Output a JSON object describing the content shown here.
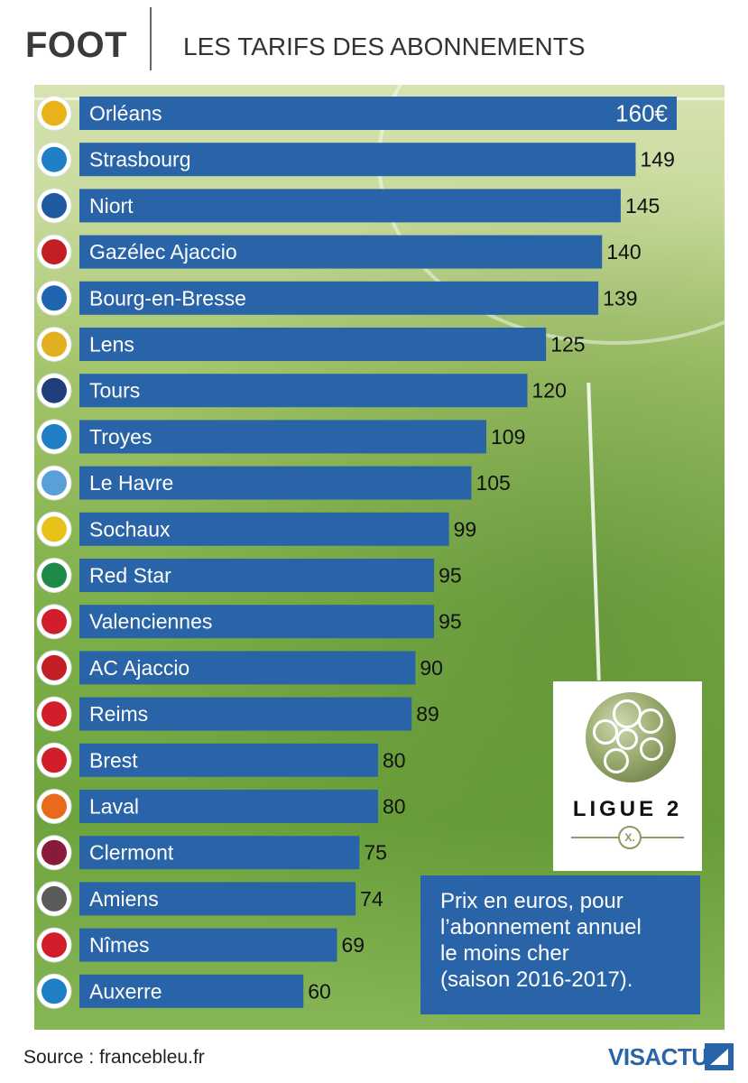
{
  "header": {
    "section": "FOOT",
    "title": "LES TARIFS DES ABONNEMENTS"
  },
  "chart_data": {
    "type": "bar",
    "orientation": "horizontal",
    "title": "LES TARIFS DES ABONNEMENTS",
    "unit": "€",
    "first_value_label": "160€",
    "categories": [
      "Orléans",
      "Strasbourg",
      "Niort",
      "Gazélec Ajaccio",
      "Bourg-en-Bresse",
      "Lens",
      "Tours",
      "Troyes",
      "Le Havre",
      "Sochaux",
      "Red Star",
      "Valenciennes",
      "AC Ajaccio",
      "Reims",
      "Brest",
      "Laval",
      "Clermont",
      "Amiens",
      "Nîmes",
      "Auxerre"
    ],
    "values": [
      160,
      149,
      145,
      140,
      139,
      125,
      120,
      109,
      105,
      99,
      95,
      95,
      90,
      89,
      80,
      80,
      75,
      74,
      69,
      60
    ],
    "xlim": [
      0,
      160
    ],
    "bar_color": "#2a64a8"
  },
  "logos": [
    "orleans-logo",
    "strasbourg-logo",
    "niort-logo",
    "gazelec-ajaccio-logo",
    "bourg-en-bresse-logo",
    "lens-logo",
    "tours-logo",
    "troyes-logo",
    "le-havre-logo",
    "sochaux-logo",
    "red-star-logo",
    "valenciennes-logo",
    "ac-ajaccio-logo",
    "reims-logo",
    "brest-logo",
    "laval-logo",
    "clermont-logo",
    "amiens-logo",
    "nimes-logo",
    "auxerre-logo"
  ],
  "logo_colors": [
    "#e8b21a",
    "#1f7fc4",
    "#1f5aa0",
    "#c41e25",
    "#1e64b0",
    "#e0b020",
    "#1f3f7a",
    "#1f7fc4",
    "#5aa0d8",
    "#e8c21a",
    "#1d8a4a",
    "#d21e2a",
    "#c41e25",
    "#d21e2a",
    "#d21e2a",
    "#e86a1a",
    "#8a1a3a",
    "#5a5a5a",
    "#d21e2a",
    "#1f7fc4"
  ],
  "ligue_logo": {
    "text": "LIGUE 2",
    "emblem": "X."
  },
  "note": {
    "lines": [
      "Prix en euros, pour",
      "l’abonnement annuel",
      "le moins cher",
      "(saison 2016-2017)."
    ]
  },
  "footer": {
    "source": "Source : francebleu.fr",
    "brand": "VISACTU"
  }
}
